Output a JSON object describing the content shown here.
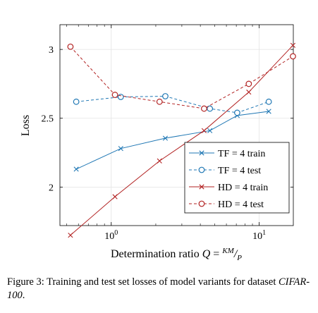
{
  "chart_data": {
    "type": "line",
    "x_scale": "log",
    "xlim": [
      0.45,
      17
    ],
    "ylim": [
      1.72,
      3.18
    ],
    "xlabel": "Determination ratio Q = KM/P",
    "ylabel": "Loss",
    "x_ticks": [
      {
        "value": 1,
        "label": "10^0"
      },
      {
        "value": 10,
        "label": "10^1"
      }
    ],
    "y_ticks": [
      {
        "value": 2,
        "label": "2"
      },
      {
        "value": 2.5,
        "label": "2.5"
      },
      {
        "value": 3,
        "label": "3"
      }
    ],
    "grid": true,
    "legend_position": "bottom-right",
    "series": [
      {
        "name": "TF = 4 train",
        "color": "#1f77b4",
        "line_style": "solid",
        "marker": "x",
        "x": [
          0.58,
          1.16,
          2.32,
          4.64,
          7.1,
          11.6
        ],
        "y": [
          2.13,
          2.28,
          2.355,
          2.41,
          2.52,
          2.55
        ]
      },
      {
        "name": "TF = 4 test",
        "color": "#1f77b4",
        "line_style": "dashed",
        "marker": "o",
        "x": [
          0.58,
          1.16,
          2.32,
          4.64,
          7.1,
          11.6
        ],
        "y": [
          2.62,
          2.655,
          2.66,
          2.57,
          2.54,
          2.62
        ]
      },
      {
        "name": "HD = 4 train",
        "color": "#b22222",
        "line_style": "solid",
        "marker": "x",
        "x": [
          0.53,
          1.06,
          2.12,
          4.24,
          8.5,
          16.9
        ],
        "y": [
          1.65,
          1.93,
          2.19,
          2.41,
          2.69,
          3.03
        ]
      },
      {
        "name": "HD = 4 test",
        "color": "#b22222",
        "line_style": "dashed",
        "marker": "o",
        "x": [
          0.53,
          1.06,
          2.12,
          4.24,
          8.5,
          16.9
        ],
        "y": [
          3.02,
          2.67,
          2.62,
          2.57,
          2.75,
          2.95
        ]
      }
    ]
  },
  "axis": {
    "xlabel_prefix": "Determination ratio ",
    "xlabel_q": "Q",
    "xlabel_eq": " = ",
    "xlabel_num": "KM",
    "xlabel_slash": "/",
    "xlabel_den": "P",
    "ylabel": "Loss",
    "xtick_base": "10",
    "xtick_exp_0": "0",
    "xtick_exp_1": "1"
  },
  "caption": {
    "main": "Figure 3: Training and test set losses of model variants for dataset ",
    "dataset": "CIFAR-100",
    "end": "."
  }
}
